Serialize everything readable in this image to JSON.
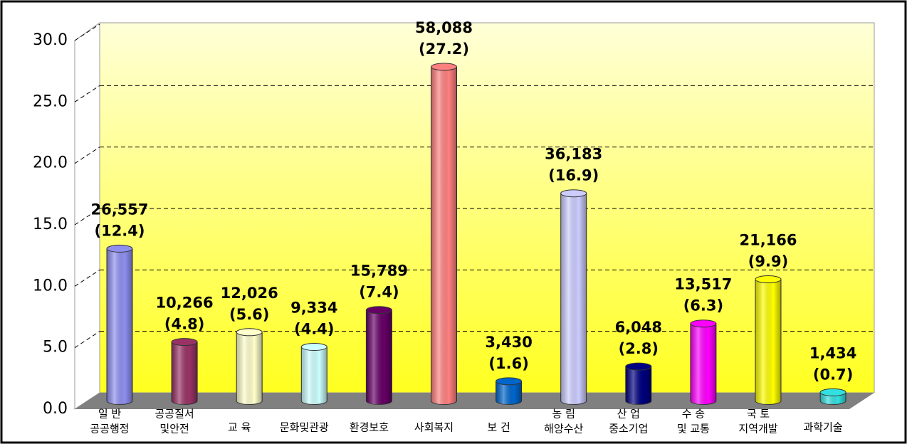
{
  "chart_data": {
    "type": "bar3d",
    "categories": [
      [
        "일      반",
        "공공행정"
      ],
      [
        "공공질서",
        "및안전"
      ],
      [
        "교  육"
      ],
      [
        "문화및관광"
      ],
      [
        "환경보호"
      ],
      [
        "사회복지"
      ],
      [
        "보  건"
      ],
      [
        "농      림",
        "해양수산"
      ],
      [
        "산      업",
        "중소기업"
      ],
      [
        "수      송",
        "및 교통"
      ],
      [
        "국      토",
        "지역개발"
      ],
      [
        "과학기술"
      ]
    ],
    "values": [
      12.4,
      4.8,
      5.6,
      4.4,
      7.4,
      27.2,
      1.6,
      16.9,
      2.8,
      6.3,
      9.9,
      0.7
    ],
    "value_labels": [
      "(12.4)",
      "(4.8)",
      "(5.6)",
      "(4.4)",
      "(7.4)",
      "(27.2)",
      "(1.6)",
      "(16.9)",
      "(2.8)",
      "(6.3)",
      "(9.9)",
      "(0.7)"
    ],
    "amounts": [
      26557,
      10266,
      12026,
      9334,
      15789,
      58088,
      3430,
      36183,
      6048,
      13517,
      21166,
      1434
    ],
    "amount_labels": [
      "26,557",
      "10,266",
      "12,026",
      "9,334",
      "15,789",
      "58,088",
      "3,430",
      "36,183",
      "6,048",
      "13,517",
      "21,166",
      "1,434"
    ],
    "colors": [
      "#8f8ff0",
      "#993366",
      "#ffffcc",
      "#ccffff",
      "#660066",
      "#ff8080",
      "#0066cc",
      "#ccccff",
      "#000080",
      "#ff00ff",
      "#ffff00",
      "#33e0e0"
    ],
    "ylim": [
      0,
      30
    ],
    "yticks": [
      {
        "value": 0,
        "label": "0.0"
      },
      {
        "value": 5,
        "label": "5.0"
      },
      {
        "value": 10,
        "label": "10.0"
      },
      {
        "value": 15,
        "label": "15.0"
      },
      {
        "value": 20,
        "label": "20.0"
      },
      {
        "value": 25,
        "label": "25.0"
      },
      {
        "value": 30,
        "label": "30.0"
      }
    ],
    "grid": true
  }
}
